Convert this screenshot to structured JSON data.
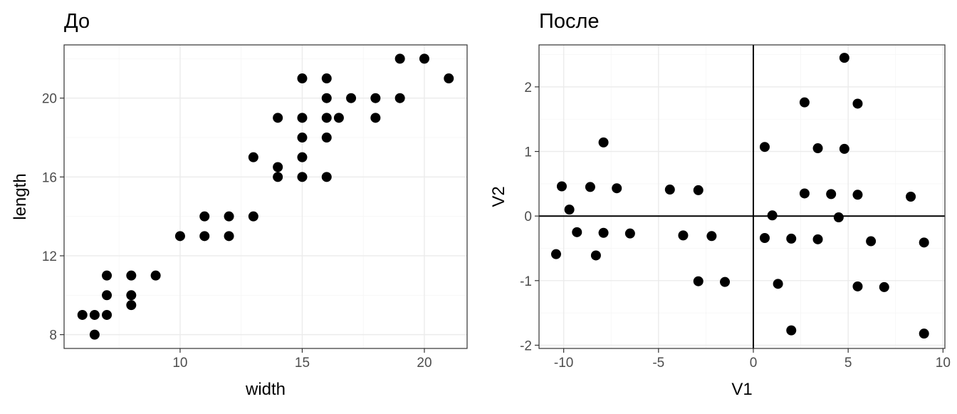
{
  "chart_data": [
    {
      "type": "scatter",
      "title": "До",
      "xlabel": "width",
      "ylabel": "length",
      "xlim": [
        5.25,
        21.75
      ],
      "ylim": [
        7.3,
        22.7
      ],
      "xticks": [
        10,
        15,
        20
      ],
      "yticks": [
        8,
        12,
        16,
        20
      ],
      "grid": true,
      "points": [
        {
          "x": 6,
          "y": 9
        },
        {
          "x": 6.5,
          "y": 9
        },
        {
          "x": 6.5,
          "y": 8
        },
        {
          "x": 7,
          "y": 9
        },
        {
          "x": 7,
          "y": 10
        },
        {
          "x": 7,
          "y": 11
        },
        {
          "x": 8,
          "y": 11
        },
        {
          "x": 8,
          "y": 10
        },
        {
          "x": 8,
          "y": 9.5
        },
        {
          "x": 9,
          "y": 11
        },
        {
          "x": 10,
          "y": 13
        },
        {
          "x": 11,
          "y": 13
        },
        {
          "x": 11,
          "y": 14
        },
        {
          "x": 12,
          "y": 14
        },
        {
          "x": 12,
          "y": 13
        },
        {
          "x": 13,
          "y": 14
        },
        {
          "x": 13,
          "y": 17
        },
        {
          "x": 14,
          "y": 19
        },
        {
          "x": 14,
          "y": 16.5
        },
        {
          "x": 14,
          "y": 16
        },
        {
          "x": 15,
          "y": 21
        },
        {
          "x": 15,
          "y": 19
        },
        {
          "x": 15,
          "y": 18
        },
        {
          "x": 15,
          "y": 17
        },
        {
          "x": 15,
          "y": 16
        },
        {
          "x": 16,
          "y": 21
        },
        {
          "x": 16,
          "y": 20
        },
        {
          "x": 16,
          "y": 19
        },
        {
          "x": 16,
          "y": 18
        },
        {
          "x": 16,
          "y": 16
        },
        {
          "x": 16.5,
          "y": 19
        },
        {
          "x": 17,
          "y": 20
        },
        {
          "x": 18,
          "y": 20
        },
        {
          "x": 18,
          "y": 19
        },
        {
          "x": 19,
          "y": 22
        },
        {
          "x": 19,
          "y": 20
        },
        {
          "x": 20,
          "y": 22
        },
        {
          "x": 21,
          "y": 21
        }
      ]
    },
    {
      "type": "scatter",
      "title": "После",
      "xlabel": "V1",
      "ylabel": "V2",
      "xlim": [
        -11.3,
        10.1
      ],
      "ylim": [
        -2.05,
        2.65
      ],
      "xticks": [
        -10,
        -5,
        0,
        5,
        10
      ],
      "yticks": [
        -2,
        -1,
        0,
        1,
        2
      ],
      "grid": true,
      "reference_lines": {
        "x": 0,
        "y": 0
      },
      "points": [
        {
          "x": -10.4,
          "y": -0.59
        },
        {
          "x": -10.1,
          "y": 0.46
        },
        {
          "x": -9.7,
          "y": 0.1
        },
        {
          "x": -9.3,
          "y": -0.25
        },
        {
          "x": -8.6,
          "y": 0.45
        },
        {
          "x": -8.3,
          "y": -0.61
        },
        {
          "x": -7.9,
          "y": 1.14
        },
        {
          "x": -7.9,
          "y": -0.26
        },
        {
          "x": -7.2,
          "y": 0.43
        },
        {
          "x": -6.5,
          "y": -0.27
        },
        {
          "x": -4.4,
          "y": 0.41
        },
        {
          "x": -3.7,
          "y": -0.3
        },
        {
          "x": -2.9,
          "y": 0.4
        },
        {
          "x": -2.9,
          "y": -1.01
        },
        {
          "x": -2.2,
          "y": -0.31
        },
        {
          "x": -1.5,
          "y": -1.02
        },
        {
          "x": 0.6,
          "y": 1.07
        },
        {
          "x": 0.6,
          "y": -0.34
        },
        {
          "x": 1.0,
          "y": 0.01
        },
        {
          "x": 1.3,
          "y": -1.05
        },
        {
          "x": 2.0,
          "y": -0.35
        },
        {
          "x": 2.0,
          "y": -1.77
        },
        {
          "x": 2.7,
          "y": 1.76
        },
        {
          "x": 2.7,
          "y": 0.35
        },
        {
          "x": 3.4,
          "y": 1.05
        },
        {
          "x": 3.4,
          "y": -0.36
        },
        {
          "x": 4.1,
          "y": 0.34
        },
        {
          "x": 4.5,
          "y": -0.02
        },
        {
          "x": 4.8,
          "y": 2.45
        },
        {
          "x": 4.8,
          "y": 1.04
        },
        {
          "x": 5.5,
          "y": 1.74
        },
        {
          "x": 5.5,
          "y": 0.33
        },
        {
          "x": 5.5,
          "y": -1.09
        },
        {
          "x": 6.2,
          "y": -0.39
        },
        {
          "x": 6.9,
          "y": -1.1
        },
        {
          "x": 8.3,
          "y": 0.3
        },
        {
          "x": 9.0,
          "y": -0.41
        },
        {
          "x": 9.0,
          "y": -1.82
        }
      ]
    }
  ]
}
